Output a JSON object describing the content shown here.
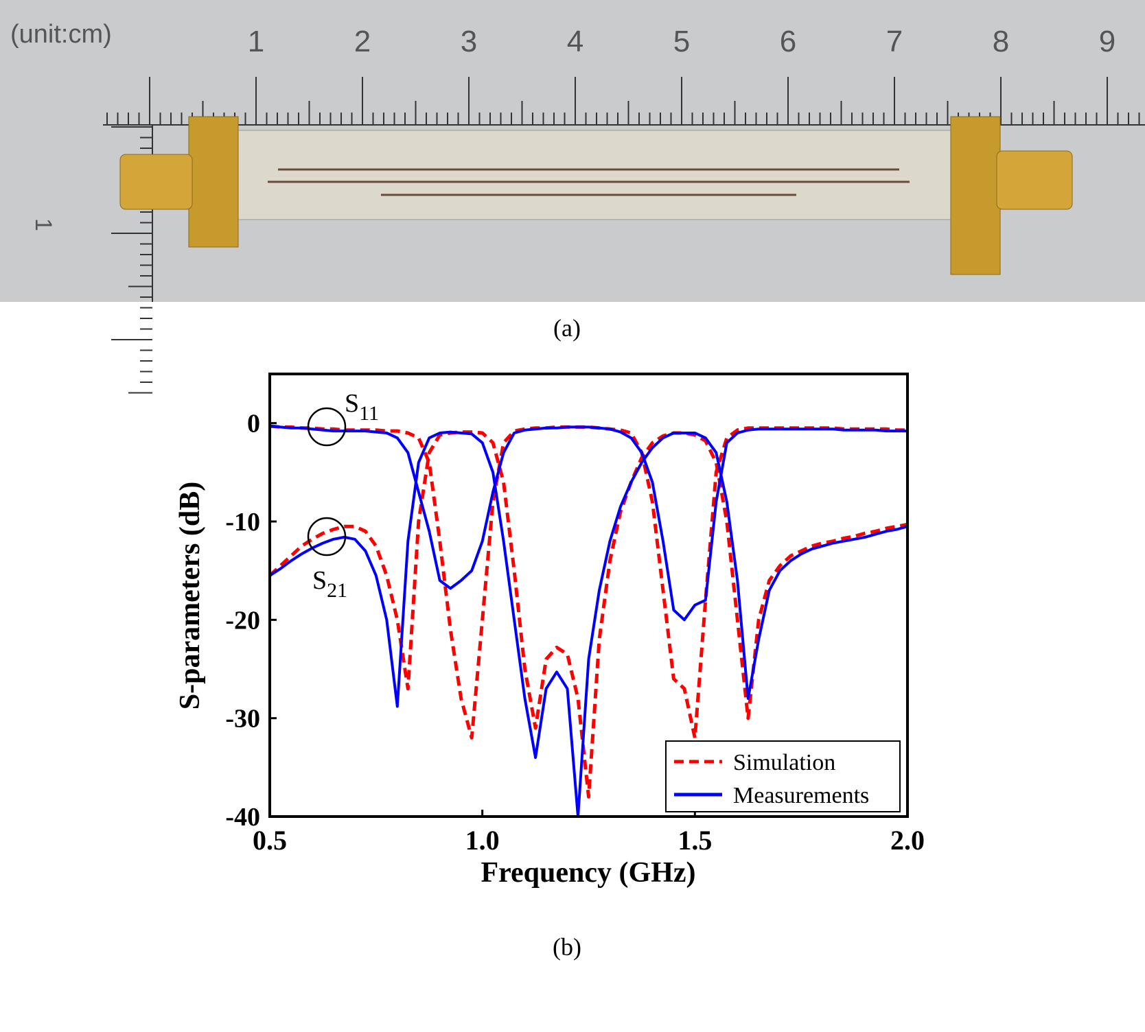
{
  "figure": {
    "photo_label": "(a)",
    "chart_label": "(b)",
    "unit_label": "(unit:cm)",
    "ruler_labels": [
      "1",
      "2",
      "3",
      "4",
      "5",
      "6",
      "7",
      "8",
      "9"
    ],
    "side_ruler_label": "1"
  },
  "chart_data": {
    "type": "line",
    "xlabel": "Frequency (GHz)",
    "ylabel": "S-parameters (dB)",
    "x": [
      0.5,
      0.525,
      0.55,
      0.575,
      0.6,
      0.625,
      0.65,
      0.675,
      0.7,
      0.725,
      0.75,
      0.775,
      0.8,
      0.825,
      0.85,
      0.875,
      0.9,
      0.925,
      0.95,
      0.975,
      1.0,
      1.025,
      1.05,
      1.075,
      1.1,
      1.125,
      1.15,
      1.175,
      1.2,
      1.225,
      1.25,
      1.275,
      1.3,
      1.325,
      1.35,
      1.375,
      1.4,
      1.425,
      1.45,
      1.475,
      1.5,
      1.525,
      1.55,
      1.575,
      1.6,
      1.625,
      1.65,
      1.675,
      1.7,
      1.725,
      1.75,
      1.775,
      1.8,
      1.825,
      1.85,
      1.875,
      1.9,
      1.925,
      1.95,
      1.975,
      2.0
    ],
    "series": [
      {
        "name": "Simulation",
        "color": "#ff0000",
        "dashed": true,
        "values": [
          -0.3,
          -0.4,
          -0.4,
          -0.5,
          -0.5,
          -0.6,
          -0.6,
          -0.7,
          -0.7,
          -0.7,
          -0.7,
          -0.8,
          -0.8,
          -1,
          -1.5,
          -4,
          -12,
          -21,
          -28,
          -32,
          -20,
          -8,
          -2,
          -0.8,
          -0.6,
          -0.5,
          -0.5,
          -0.4,
          -0.4,
          -0.4,
          -0.4,
          -0.5,
          -0.6,
          -0.7,
          -1,
          -3,
          -8,
          -17,
          -26,
          -27,
          -32,
          -18,
          -5,
          -1.5,
          -0.7,
          -0.5,
          -0.5,
          -0.5,
          -0.5,
          -0.5,
          -0.5,
          -0.5,
          -0.5,
          -0.5,
          -0.6,
          -0.6,
          -0.6,
          -0.6,
          -0.6,
          -0.7,
          -0.7
        ]
      },
      {
        "name": "Simulation",
        "color": "#ff0000",
        "dashed": true,
        "values": [
          -15.5,
          -14.5,
          -13.5,
          -12.5,
          -11.8,
          -11.2,
          -10.8,
          -10.5,
          -10.5,
          -11,
          -12.5,
          -15.5,
          -20,
          -27,
          -10,
          -3,
          -1.2,
          -1,
          -0.9,
          -0.9,
          -1,
          -2,
          -6,
          -15,
          -25,
          -31,
          -24,
          -22.8,
          -23.5,
          -28,
          -38,
          -22,
          -14,
          -9,
          -6,
          -3.5,
          -2,
          -1.3,
          -1,
          -1,
          -1.2,
          -1.8,
          -4,
          -10,
          -20,
          -30,
          -20,
          -16,
          -14.5,
          -13.5,
          -13,
          -12.5,
          -12.2,
          -12,
          -11.7,
          -11.5,
          -11.2,
          -11,
          -10.7,
          -10.5,
          -10.3
        ]
      },
      {
        "name": "Measurements",
        "color": "#0000ff",
        "dashed": false,
        "values": [
          -0.3,
          -0.4,
          -0.5,
          -0.5,
          -0.6,
          -0.7,
          -0.8,
          -0.8,
          -0.8,
          -0.8,
          -0.9,
          -1,
          -1.5,
          -3,
          -7,
          -11,
          -16,
          -16.8,
          -16,
          -15,
          -12,
          -7,
          -3,
          -1,
          -0.7,
          -0.6,
          -0.5,
          -0.5,
          -0.4,
          -0.4,
          -0.4,
          -0.5,
          -0.6,
          -0.9,
          -1.5,
          -3,
          -6,
          -12,
          -19,
          -20,
          -18.5,
          -18,
          -8,
          -2,
          -1,
          -0.7,
          -0.6,
          -0.6,
          -0.6,
          -0.6,
          -0.6,
          -0.6,
          -0.6,
          -0.6,
          -0.7,
          -0.7,
          -0.7,
          -0.7,
          -0.8,
          -0.8,
          -0.8
        ]
      },
      {
        "name": "Measurements",
        "color": "#0000ff",
        "dashed": false,
        "values": [
          -15.5,
          -14.8,
          -14,
          -13.3,
          -12.7,
          -12.2,
          -11.8,
          -11.6,
          -11.8,
          -13,
          -15.5,
          -20,
          -28.8,
          -12,
          -4,
          -1.5,
          -1,
          -0.9,
          -1,
          -1.1,
          -2,
          -5,
          -12,
          -20,
          -28,
          -34,
          -27,
          -25.3,
          -27,
          -40,
          -24,
          -17,
          -12,
          -8.5,
          -6,
          -4,
          -2.5,
          -1.5,
          -1,
          -1,
          -1,
          -1.5,
          -3,
          -8,
          -16,
          -28,
          -22,
          -17,
          -15,
          -14,
          -13.3,
          -12.8,
          -12.5,
          -12.2,
          -12,
          -11.8,
          -11.6,
          -11.3,
          -11,
          -10.8,
          -10.5
        ]
      }
    ],
    "annotations": [
      {
        "text": "S",
        "sub": "11"
      },
      {
        "text": "S",
        "sub": "21"
      }
    ],
    "xlim": [
      0.5,
      2.0
    ],
    "ylim": [
      -40,
      5
    ],
    "xticks": [
      0.5,
      {
        "value": 1.0,
        "label": "1.0"
      },
      1.5,
      {
        "value": 2.0,
        "label": "2.0"
      }
    ],
    "yticks": [
      0,
      -10,
      -20,
      -30,
      -40
    ],
    "grid": false,
    "legend": "lower right"
  }
}
